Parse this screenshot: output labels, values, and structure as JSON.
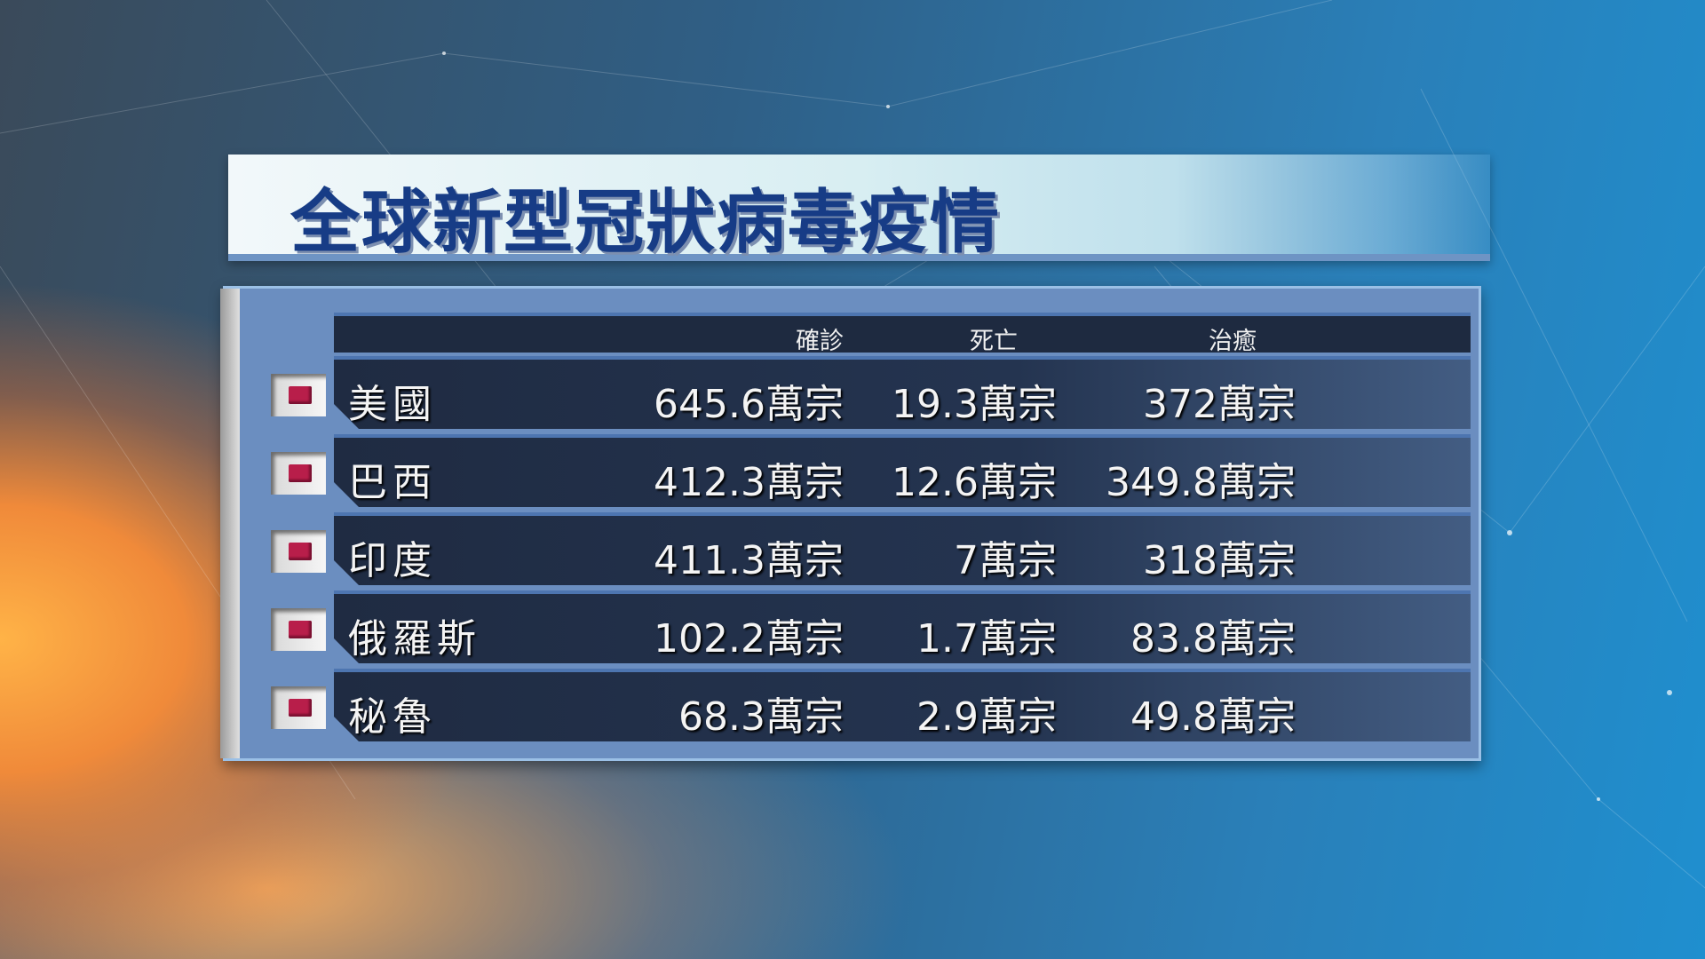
{
  "title": "全球新型冠狀病毒疫情",
  "columns": [
    "確診",
    "死亡",
    "治癒"
  ],
  "rows": [
    {
      "country": "美國",
      "confirmed": "645.6萬宗",
      "deaths": "19.3萬宗",
      "recovered": "372萬宗"
    },
    {
      "country": "巴西",
      "confirmed": "412.3萬宗",
      "deaths": "12.6萬宗",
      "recovered": "349.8萬宗"
    },
    {
      "country": "印度",
      "confirmed": "411.3萬宗",
      "deaths": "7萬宗",
      "recovered": "318萬宗"
    },
    {
      "country": "俄羅斯",
      "confirmed": "102.2萬宗",
      "deaths": "1.7萬宗",
      "recovered": "83.8萬宗"
    },
    {
      "country": "秘魯",
      "confirmed": "68.3萬宗",
      "deaths": "2.9萬宗",
      "recovered": "49.8萬宗"
    }
  ],
  "colors": {
    "title": "#173c86",
    "marker": "#b81e4a",
    "row_bg": "#1f2b42"
  }
}
